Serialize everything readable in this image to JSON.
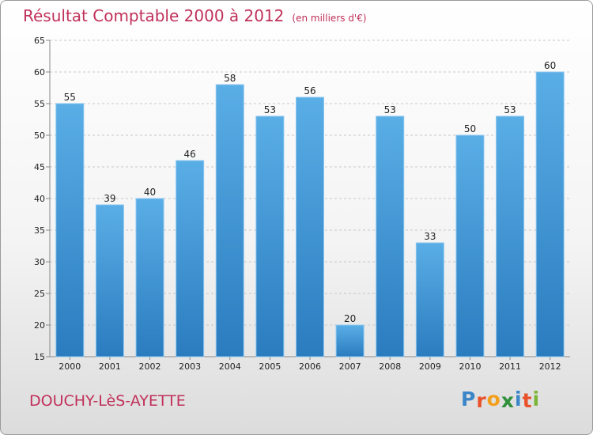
{
  "header": {
    "title": "Résultat Comptable 2000 à 2012",
    "subtitle": "(en milliers d'€)"
  },
  "footer": {
    "place": "DOUCHY-LèS-AYETTE",
    "brand_letters": [
      {
        "char": "P",
        "color": "#3a86c8"
      },
      {
        "char": "r",
        "color": "#e8512a"
      },
      {
        "char": "o",
        "color": "#f2a01c"
      },
      {
        "char": "x",
        "color": "#2f8f3a"
      },
      {
        "char": "i",
        "color": "#3a86c8"
      },
      {
        "char": "t",
        "color": "#e8512a"
      },
      {
        "char": "i",
        "color": "#7ab534"
      }
    ]
  },
  "colors": {
    "title": "#c0305a",
    "bar_light": "#5aaee6",
    "bar_dark": "#2a7cbf"
  },
  "chart_data": {
    "type": "bar",
    "title": "Résultat Comptable 2000 à 2012",
    "subtitle": "(en milliers d'€)",
    "categories": [
      "2000",
      "2001",
      "2002",
      "2003",
      "2004",
      "2005",
      "2006",
      "2007",
      "2008",
      "2009",
      "2010",
      "2011",
      "2012"
    ],
    "values": [
      55,
      39,
      40,
      46,
      58,
      53,
      56,
      20,
      53,
      33,
      50,
      53,
      60
    ],
    "ylim": [
      15,
      65
    ],
    "yticks": [
      15,
      20,
      25,
      30,
      35,
      40,
      45,
      50,
      55,
      60,
      65
    ],
    "grid": true,
    "data_labels": true
  }
}
